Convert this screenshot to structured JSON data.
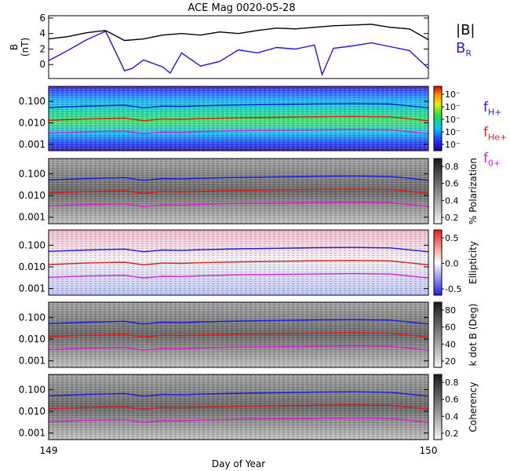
{
  "chart_data": {
    "type": "line",
    "title": "ACE Mag 0020-05-28",
    "xlabel": "Day of Year",
    "x_ticks": [
      "149",
      "150"
    ],
    "xlim": [
      149,
      150
    ],
    "colors": {
      "B_total": "#000000",
      "B_R": "#1a1ad8",
      "f_H": "#1818e6",
      "f_He": "#e01818",
      "f_O": "#e01ad8"
    },
    "panels": [
      {
        "id": "mag",
        "ylabel": [
          "B",
          "(nT)"
        ],
        "yticks": [
          "6",
          "4",
          "2",
          "0"
        ],
        "ylim": [
          -1.8,
          6.3
        ],
        "series": [
          {
            "name": "|B|",
            "key": "B_total",
            "x": [
              149.0,
              149.05,
              149.1,
              149.15,
              149.2,
              149.25,
              149.3,
              149.35,
              149.4,
              149.45,
              149.5,
              149.55,
              149.6,
              149.65,
              149.7,
              149.75,
              149.8,
              149.85,
              149.9,
              149.95,
              150.0
            ],
            "y": [
              3.3,
              3.6,
              4.1,
              4.4,
              3.1,
              3.3,
              3.8,
              4.0,
              3.8,
              4.2,
              4.0,
              4.4,
              4.7,
              4.6,
              4.8,
              5.0,
              5.1,
              5.2,
              4.8,
              4.6,
              3.2
            ]
          },
          {
            "name": "B_R",
            "key": "B_R",
            "x": [
              149.0,
              149.05,
              149.1,
              149.15,
              149.2,
              149.22,
              149.25,
              149.3,
              149.32,
              149.35,
              149.4,
              149.45,
              149.5,
              149.55,
              149.6,
              149.65,
              149.7,
              149.72,
              149.75,
              149.8,
              149.85,
              149.9,
              149.95,
              150.0
            ],
            "y": [
              0.5,
              1.8,
              3.2,
              4.3,
              -0.8,
              -0.5,
              0.6,
              -0.3,
              -1.1,
              1.5,
              -0.2,
              0.4,
              1.9,
              1.5,
              2.2,
              2.0,
              2.5,
              -1.3,
              2.1,
              2.4,
              2.8,
              2.3,
              1.8,
              -0.5
            ]
          }
        ]
      },
      {
        "id": "power",
        "yticks": [
          "0.100",
          "0.010",
          "0.001"
        ],
        "ylim": [
          0.0005,
          0.5
        ],
        "colorbar": [
          "10⁻",
          "10⁻",
          "10⁻",
          "10⁻",
          "10⁻"
        ]
      },
      {
        "id": "polarization",
        "yticks": [
          "0.100",
          "0.010",
          "0.001"
        ],
        "ylim": [
          0.0005,
          0.5
        ],
        "colorbar_label": "% Polarization",
        "colorbar": [
          "0.8",
          "0.6",
          "0.4",
          "0.2"
        ]
      },
      {
        "id": "ellipticity",
        "yticks": [
          "0.100",
          "0.010",
          "0.001"
        ],
        "ylim": [
          0.0005,
          0.5
        ],
        "colorbar_label": "Ellipticity",
        "colorbar": [
          "0.5",
          "0.0",
          "-0.5"
        ]
      },
      {
        "id": "kdotb",
        "yticks": [
          "0.100",
          "0.010",
          "0.001"
        ],
        "ylim": [
          0.0005,
          0.5
        ],
        "colorbar_label": "k dot B (Deg)",
        "colorbar": [
          "80",
          "60",
          "40",
          "20"
        ]
      },
      {
        "id": "coherency",
        "yticks": [
          "0.100",
          "0.010",
          "0.001"
        ],
        "ylim": [
          0.0005,
          0.5
        ],
        "colorbar_label": "Coherency",
        "colorbar": [
          "0.8",
          "0.6",
          "0.4",
          "0.2"
        ]
      }
    ],
    "gyrofrequency_series": [
      {
        "name": "f_H+",
        "key": "f_H",
        "x": [
          149.0,
          149.1,
          149.2,
          149.25,
          149.3,
          149.35,
          149.4,
          149.5,
          149.6,
          149.7,
          149.8,
          149.9,
          150.0
        ],
        "y": [
          0.052,
          0.06,
          0.066,
          0.05,
          0.06,
          0.058,
          0.062,
          0.068,
          0.072,
          0.076,
          0.079,
          0.075,
          0.05
        ]
      },
      {
        "name": "f_He+",
        "key": "f_He",
        "x": [
          149.0,
          149.1,
          149.2,
          149.25,
          149.3,
          149.35,
          149.4,
          149.5,
          149.6,
          149.7,
          149.8,
          149.9,
          150.0
        ],
        "y": [
          0.013,
          0.015,
          0.0165,
          0.0125,
          0.015,
          0.0145,
          0.0155,
          0.017,
          0.018,
          0.019,
          0.0198,
          0.0188,
          0.0125
        ]
      },
      {
        "name": "f_O+",
        "key": "f_O",
        "x": [
          149.0,
          149.1,
          149.2,
          149.25,
          149.3,
          149.35,
          149.4,
          149.5,
          149.6,
          149.7,
          149.8,
          149.9,
          150.0
        ],
        "y": [
          0.0033,
          0.0038,
          0.0041,
          0.0031,
          0.0037,
          0.0036,
          0.0039,
          0.0043,
          0.0045,
          0.0047,
          0.0049,
          0.0047,
          0.0031
        ]
      }
    ],
    "legend": {
      "mag": [
        {
          "label": "|B|"
        },
        {
          "label": "B",
          "sub": "R"
        }
      ],
      "freq": [
        {
          "label": "f",
          "sub": "H+"
        },
        {
          "label": "f",
          "sub": "He+"
        },
        {
          "label": "f",
          "sub": "0+"
        }
      ]
    }
  }
}
